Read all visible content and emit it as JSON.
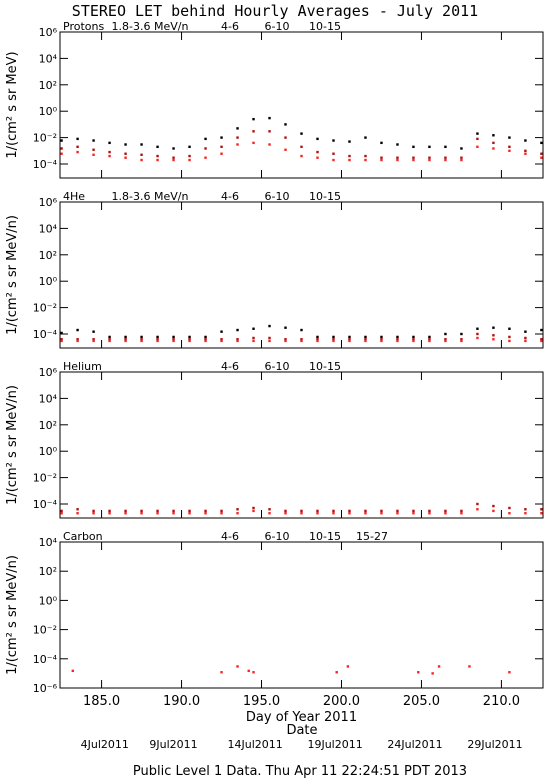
{
  "title": "STEREO LET behind Hourly Averages - July 2011",
  "footer": "Public Level 1 Data. Thu Apr 11 22:24:51 PDT 2013",
  "date_axis": {
    "label": "Date",
    "ticks": [
      {
        "value": 185.2,
        "label": "4Jul2011"
      },
      {
        "value": 189.5,
        "label": "9Jul2011"
      },
      {
        "value": 194.6,
        "label": "14Jul2011"
      },
      {
        "value": 199.6,
        "label": "19Jul2011"
      },
      {
        "value": 204.6,
        "label": "24Jul2011"
      },
      {
        "value": 209.6,
        "label": "29Jul2011"
      }
    ]
  },
  "chart_data": [
    {
      "type": "scatter",
      "title": "Protons",
      "ylabel": "1/(cm² s sr MeV)",
      "log_y": true,
      "xlim": [
        182.4,
        212.6
      ],
      "ylim": [
        8.7e-06,
        1000000
      ],
      "yticks": [
        {
          "value": 0.0001,
          "label": "10⁻⁴"
        },
        {
          "value": 0.01,
          "label": "10⁻²"
        },
        {
          "value": 1,
          "label": "10⁰"
        },
        {
          "value": 100,
          "label": "10²"
        },
        {
          "value": 10000,
          "label": "10⁴"
        },
        {
          "value": 1000000,
          "label": "10⁶"
        }
      ],
      "x": [
        182.5,
        183.5,
        184.5,
        185.5,
        186.5,
        187.5,
        188.5,
        189.5,
        190.5,
        191.5,
        192.5,
        193.5,
        194.5,
        195.5,
        196.5,
        197.5,
        198.5,
        199.5,
        200.5,
        201.5,
        202.5,
        203.5,
        204.5,
        205.5,
        206.5,
        207.5,
        208.5,
        209.5,
        210.5,
        211.5,
        212.5
      ],
      "series": [
        {
          "name": "1.8-3.6 MeV/n",
          "color": "#000000",
          "values": [
            0.006,
            0.008,
            0.006,
            0.004,
            0.003,
            0.003,
            0.002,
            0.0015,
            0.002,
            0.008,
            0.01,
            0.05,
            0.25,
            0.3,
            0.1,
            0.02,
            0.008,
            0.006,
            0.005,
            0.01,
            0.004,
            0.003,
            0.002,
            0.002,
            0.002,
            0.0015,
            0.02,
            0.015,
            0.01,
            0.006,
            0.004
          ]
        },
        {
          "name": "4-6",
          "color": "#b01010",
          "values": [
            0.0015,
            0.002,
            0.0012,
            0.0008,
            0.0006,
            0.0005,
            0.0004,
            0.0003,
            0.0004,
            0.0015,
            0.002,
            0.01,
            0.03,
            0.03,
            0.01,
            0.002,
            0.0008,
            0.0006,
            0.0004,
            0.0004,
            0.0003,
            0.0003,
            0.0003,
            0.0003,
            0.0003,
            0.0003,
            0.008,
            0.004,
            0.002,
            0.001,
            0.0006
          ]
        },
        {
          "name": "6-10",
          "color": "#ff2020",
          "values": [
            0.0006,
            0.0008,
            0.0005,
            0.0004,
            0.0003,
            0.0002,
            0.0002,
            0.0002,
            0.0002,
            0.0003,
            0.0006,
            0.003,
            0.004,
            0.003,
            0.0012,
            0.0004,
            0.0003,
            0.0002,
            0.0002,
            0.0002,
            0.0002,
            0.0002,
            0.0002,
            0.0002,
            0.0002,
            0.0002,
            0.002,
            0.0015,
            0.001,
            0.0006,
            0.0003
          ]
        },
        {
          "name": "10-15",
          "color": "#909090",
          "values": [
            null,
            null,
            null,
            null,
            null,
            null,
            null,
            null,
            null,
            null,
            null,
            null,
            null,
            null,
            null,
            null,
            null,
            null,
            null,
            null,
            null,
            null,
            null,
            null,
            null,
            null,
            null,
            null,
            null,
            null,
            null
          ]
        }
      ]
    },
    {
      "type": "scatter",
      "title": "4He",
      "ylabel": "1/(cm² s sr MeV/n)",
      "log_y": true,
      "xlim": [
        182.4,
        212.6
      ],
      "ylim": [
        8.7e-06,
        1000000
      ],
      "yticks": [
        {
          "value": 0.0001,
          "label": "10⁻⁴"
        },
        {
          "value": 0.01,
          "label": "10⁻²"
        },
        {
          "value": 1,
          "label": "10⁰"
        },
        {
          "value": 100,
          "label": "10²"
        },
        {
          "value": 10000,
          "label": "10⁴"
        },
        {
          "value": 1000000,
          "label": "10⁶"
        }
      ],
      "x": [
        182.5,
        183.5,
        184.5,
        185.5,
        186.5,
        187.5,
        188.5,
        189.5,
        190.5,
        191.5,
        192.5,
        193.5,
        194.5,
        195.5,
        196.5,
        197.5,
        198.5,
        199.5,
        200.5,
        201.5,
        202.5,
        203.5,
        204.5,
        205.5,
        206.5,
        207.5,
        208.5,
        209.5,
        210.5,
        211.5,
        212.5
      ],
      "series": [
        {
          "name": "1.8-3.6 MeV/n",
          "color": "#000000",
          "values": [
            0.00012,
            0.0002,
            0.00015,
            6e-05,
            6e-05,
            6e-05,
            6e-05,
            6e-05,
            6e-05,
            6e-05,
            0.00015,
            0.0002,
            0.00025,
            0.0004,
            0.0003,
            0.0002,
            6e-05,
            6e-05,
            6e-05,
            6e-05,
            6e-05,
            6e-05,
            6e-05,
            6e-05,
            0.0001,
            0.0001,
            0.00025,
            0.0003,
            0.00025,
            0.00015,
            0.0002
          ]
        },
        {
          "name": "4-6",
          "color": "#b01010",
          "values": [
            4e-05,
            4e-05,
            4e-05,
            4e-05,
            4e-05,
            4e-05,
            4e-05,
            4e-05,
            4e-05,
            4e-05,
            4e-05,
            4e-05,
            5e-05,
            5e-05,
            4e-05,
            4e-05,
            4e-05,
            4e-05,
            4e-05,
            4e-05,
            4e-05,
            4e-05,
            4e-05,
            4e-05,
            4e-05,
            4e-05,
            0.0001,
            8e-05,
            6e-05,
            5e-05,
            4e-05
          ]
        },
        {
          "name": "6-10",
          "color": "#ff2020",
          "values": [
            3e-05,
            3e-05,
            3e-05,
            3e-05,
            3e-05,
            3e-05,
            3e-05,
            3e-05,
            3e-05,
            3e-05,
            3e-05,
            3e-05,
            3e-05,
            3e-05,
            3e-05,
            3e-05,
            3e-05,
            3e-05,
            3e-05,
            3e-05,
            3e-05,
            3e-05,
            3e-05,
            3e-05,
            3e-05,
            3e-05,
            5e-05,
            4e-05,
            3e-05,
            3e-05,
            3e-05
          ]
        },
        {
          "name": "10-15",
          "color": "#909090",
          "values": [
            null,
            null,
            null,
            null,
            null,
            null,
            null,
            null,
            null,
            null,
            null,
            null,
            null,
            null,
            null,
            null,
            null,
            null,
            null,
            null,
            null,
            null,
            null,
            null,
            null,
            null,
            null,
            null,
            null,
            null,
            null
          ]
        }
      ]
    },
    {
      "type": "scatter",
      "title": "Helium",
      "ylabel": "1/(cm² s sr MeV/n)",
      "log_y": true,
      "xlim": [
        182.4,
        212.6
      ],
      "ylim": [
        8.7e-06,
        1000000
      ],
      "yticks": [
        {
          "value": 0.0001,
          "label": "10⁻⁴"
        },
        {
          "value": 0.01,
          "label": "10⁻²"
        },
        {
          "value": 1,
          "label": "10⁰"
        },
        {
          "value": 100,
          "label": "10²"
        },
        {
          "value": 10000,
          "label": "10⁴"
        },
        {
          "value": 1000000,
          "label": "10⁶"
        }
      ],
      "x": [
        182.5,
        183.5,
        184.5,
        185.5,
        186.5,
        187.5,
        188.5,
        189.5,
        190.5,
        191.5,
        192.5,
        193.5,
        194.5,
        195.5,
        196.5,
        197.5,
        198.5,
        199.5,
        200.5,
        201.5,
        202.5,
        203.5,
        204.5,
        205.5,
        206.5,
        207.5,
        208.5,
        209.5,
        210.5,
        211.5,
        212.5
      ],
      "series": [
        {
          "name": "4-6",
          "color": "#b01010",
          "values": [
            3e-05,
            4e-05,
            3e-05,
            3e-05,
            3e-05,
            3e-05,
            3e-05,
            3e-05,
            3e-05,
            3e-05,
            3e-05,
            4e-05,
            5e-05,
            4e-05,
            3e-05,
            3e-05,
            3e-05,
            3e-05,
            3e-05,
            3e-05,
            3e-05,
            3e-05,
            3e-05,
            3e-05,
            3e-05,
            3e-05,
            0.0001,
            7e-05,
            5e-05,
            4e-05,
            4e-05
          ]
        },
        {
          "name": "6-10",
          "color": "#ff2020",
          "values": [
            2e-05,
            2e-05,
            2e-05,
            2e-05,
            2e-05,
            2e-05,
            2e-05,
            2e-05,
            2e-05,
            2e-05,
            2e-05,
            2e-05,
            3e-05,
            2e-05,
            2e-05,
            2e-05,
            2e-05,
            2e-05,
            2e-05,
            2e-05,
            2e-05,
            2e-05,
            2e-05,
            2e-05,
            2e-05,
            2e-05,
            4e-05,
            3e-05,
            2e-05,
            2e-05,
            2e-05
          ]
        },
        {
          "name": "10-15",
          "color": "#909090",
          "values": [
            null,
            null,
            null,
            null,
            null,
            null,
            null,
            null,
            null,
            null,
            null,
            null,
            null,
            null,
            null,
            null,
            null,
            null,
            null,
            null,
            null,
            null,
            null,
            null,
            null,
            null,
            null,
            null,
            null,
            null,
            null
          ]
        }
      ]
    },
    {
      "type": "scatter",
      "title": "Carbon",
      "ylabel": "1/(cm² s sr MeV/n)",
      "xlabel": "Day of Year 2011",
      "log_y": true,
      "xlim": [
        182.4,
        212.6
      ],
      "ylim": [
        1e-06,
        10000
      ],
      "yticks": [
        {
          "value": 1e-06,
          "label": "10⁻⁶"
        },
        {
          "value": 0.0001,
          "label": "10⁻⁴"
        },
        {
          "value": 0.01,
          "label": "10⁻²"
        },
        {
          "value": 1,
          "label": "10⁰"
        },
        {
          "value": 100,
          "label": "10²"
        },
        {
          "value": 10000,
          "label": "10⁴"
        }
      ],
      "xticks": [
        {
          "value": 185,
          "label": "185.0"
        },
        {
          "value": 190,
          "label": "190.0"
        },
        {
          "value": 195,
          "label": "195.0"
        },
        {
          "value": 200,
          "label": "200.0"
        },
        {
          "value": 205,
          "label": "205.0"
        },
        {
          "value": 210,
          "label": "210.0"
        }
      ],
      "x": [
        183.2,
        192.5,
        193.5,
        194.2,
        194.5,
        199.7,
        200.4,
        204.8,
        205.7,
        206.1,
        208.0,
        210.5
      ],
      "series": [
        {
          "name": "4-6",
          "color": "#b01010",
          "values": [
            null,
            null,
            null,
            null,
            null,
            null,
            null,
            null,
            null,
            null,
            null,
            null
          ]
        },
        {
          "name": "6-10",
          "color": "#ff2020",
          "values": [
            1.5e-05,
            1.2e-05,
            3e-05,
            1.5e-05,
            1.2e-05,
            1.2e-05,
            3e-05,
            1.2e-05,
            1e-05,
            3e-05,
            3e-05,
            1.2e-05
          ]
        },
        {
          "name": "10-15",
          "color": "#909090",
          "values": [
            null,
            null,
            null,
            null,
            null,
            null,
            null,
            null,
            null,
            null,
            null,
            null
          ]
        },
        {
          "name": "15-27",
          "color": "#1010e0",
          "values": [
            null,
            null,
            null,
            null,
            null,
            null,
            null,
            null,
            null,
            null,
            null,
            null
          ]
        }
      ]
    }
  ]
}
